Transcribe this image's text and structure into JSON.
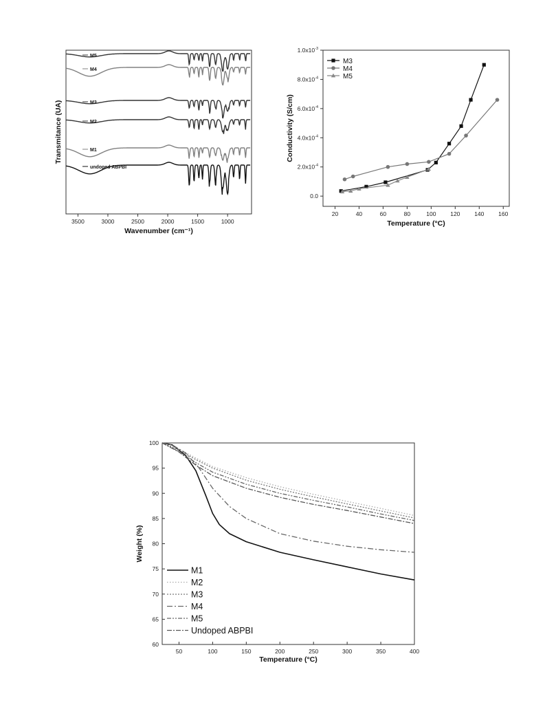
{
  "chart_data": [
    {
      "id": "ftir",
      "type": "line",
      "xlabel": "Wavenumber (cm⁻¹)",
      "ylabel": "Transmitance (UA)",
      "xlim": [
        3700,
        600
      ],
      "x_reversed": true,
      "x_ticks": [
        3500,
        3000,
        2500,
        2000,
        1500,
        1000
      ],
      "series": [
        {
          "name": "M5",
          "color": "#333333",
          "offset": 0.0
        },
        {
          "name": "M4",
          "color": "#808080",
          "offset": 1.0
        },
        {
          "name": "M3",
          "color": "#333333",
          "offset": 2.0
        },
        {
          "name": "M2",
          "color": "#333333",
          "offset": 3.0
        },
        {
          "name": "M1",
          "color": "#808080",
          "offset": 4.0
        },
        {
          "name": "undoped ABPBI",
          "color": "#111111",
          "offset": 5.0
        }
      ],
      "legend": "inline-left",
      "y_ticks_visible": false
    },
    {
      "id": "conductivity",
      "type": "line",
      "xlabel": "Temperature (°C)",
      "ylabel": "Conductivity (S/cm)",
      "xlim": [
        10,
        165
      ],
      "ylim": [
        -7e-05,
        0.001
      ],
      "x_ticks": [
        20,
        40,
        60,
        80,
        100,
        120,
        140,
        160
      ],
      "y_tick_labels": [
        {
          "value": 0.0,
          "label": "0.0"
        },
        {
          "value": 0.0002,
          "label": "2.0x10",
          "exp": "-4"
        },
        {
          "value": 0.0004,
          "label": "4.0x10",
          "exp": "-4"
        },
        {
          "value": 0.0006,
          "label": "6.0x10",
          "exp": "-4"
        },
        {
          "value": 0.0008,
          "label": "8.0x10",
          "exp": "-4"
        },
        {
          "value": 0.001,
          "label": "1.0x10",
          "exp": "-3"
        }
      ],
      "legend": "top-left",
      "series": [
        {
          "name": "M3",
          "color": "#111111",
          "marker": "square",
          "x": [
            25,
            46,
            62,
            97,
            104,
            115,
            125,
            133,
            144
          ],
          "y": [
            3.5e-05,
            6.5e-05,
            9.5e-05,
            0.00018,
            0.00023,
            0.00036,
            0.00048,
            0.00066,
            0.0009
          ]
        },
        {
          "name": "M4",
          "color": "#777777",
          "marker": "circle",
          "x": [
            28,
            35,
            64,
            80,
            98,
            115,
            129,
            155
          ],
          "y": [
            0.000115,
            0.000135,
            0.0002,
            0.00022,
            0.000235,
            0.00029,
            0.000415,
            0.00066
          ]
        },
        {
          "name": "M5",
          "color": "#888888",
          "marker": "triangle",
          "x": [
            26,
            33,
            40,
            64,
            72,
            80,
            98
          ],
          "y": [
            3e-05,
            3.5e-05,
            5e-05,
            7.5e-05,
            0.000105,
            0.00013,
            0.000185
          ]
        }
      ]
    },
    {
      "id": "tga",
      "type": "line",
      "xlabel": "Temperature (°C)",
      "ylabel": "Weight (%)",
      "xlim": [
        25,
        400
      ],
      "ylim": [
        60,
        100
      ],
      "x_ticks": [
        50,
        100,
        150,
        200,
        250,
        300,
        350,
        400
      ],
      "y_ticks": [
        60,
        65,
        70,
        75,
        80,
        85,
        90,
        95,
        100
      ],
      "legend": "bottom-left",
      "series": [
        {
          "name": "M1",
          "color": "#111111",
          "dash": "",
          "x": [
            25,
            40,
            60,
            75,
            90,
            100,
            110,
            125,
            150,
            200,
            250,
            300,
            350,
            400
          ],
          "y": [
            100,
            99.6,
            97.5,
            94.5,
            89.5,
            86.0,
            83.8,
            82.0,
            80.4,
            78.3,
            76.8,
            75.4,
            74.0,
            72.8
          ]
        },
        {
          "name": "M2",
          "color": "#aaaaaa",
          "dash": "1.5,2.5",
          "x": [
            25,
            50,
            75,
            100,
            150,
            200,
            250,
            300,
            350,
            400
          ],
          "y": [
            100,
            98.8,
            97.0,
            95.3,
            93.1,
            91.3,
            89.8,
            88.4,
            87.0,
            85.6
          ]
        },
        {
          "name": "M3",
          "color": "#777777",
          "dash": "2,2",
          "x": [
            25,
            50,
            75,
            100,
            150,
            200,
            250,
            300,
            350,
            400
          ],
          "y": [
            100,
            98.6,
            96.7,
            95.0,
            92.6,
            90.8,
            89.3,
            87.9,
            86.5,
            85.1
          ]
        },
        {
          "name": "M4",
          "color": "#666666",
          "dash": "8,3,2,3",
          "x": [
            25,
            40,
            60,
            80,
            100,
            125,
            150,
            200,
            250,
            300,
            350,
            400
          ],
          "y": [
            100,
            99.6,
            98.0,
            95.0,
            91.0,
            87.4,
            85.0,
            82.0,
            80.5,
            79.5,
            78.8,
            78.3
          ]
        },
        {
          "name": "M5",
          "color": "#666666",
          "dash": "6,2,2,2,2,2",
          "x": [
            25,
            50,
            75,
            100,
            150,
            200,
            250,
            300,
            350,
            400
          ],
          "y": [
            100,
            98.3,
            96.1,
            94.2,
            91.8,
            90.0,
            88.6,
            87.3,
            85.9,
            84.6
          ]
        },
        {
          "name": "Undoped ABPBI",
          "color": "#555555",
          "dash": "7,2,2,2",
          "x": [
            25,
            50,
            75,
            100,
            150,
            200,
            250,
            300,
            350,
            400
          ],
          "y": [
            100,
            98.2,
            95.6,
            93.5,
            91.0,
            89.2,
            87.8,
            86.6,
            85.3,
            84.0
          ]
        }
      ]
    }
  ]
}
